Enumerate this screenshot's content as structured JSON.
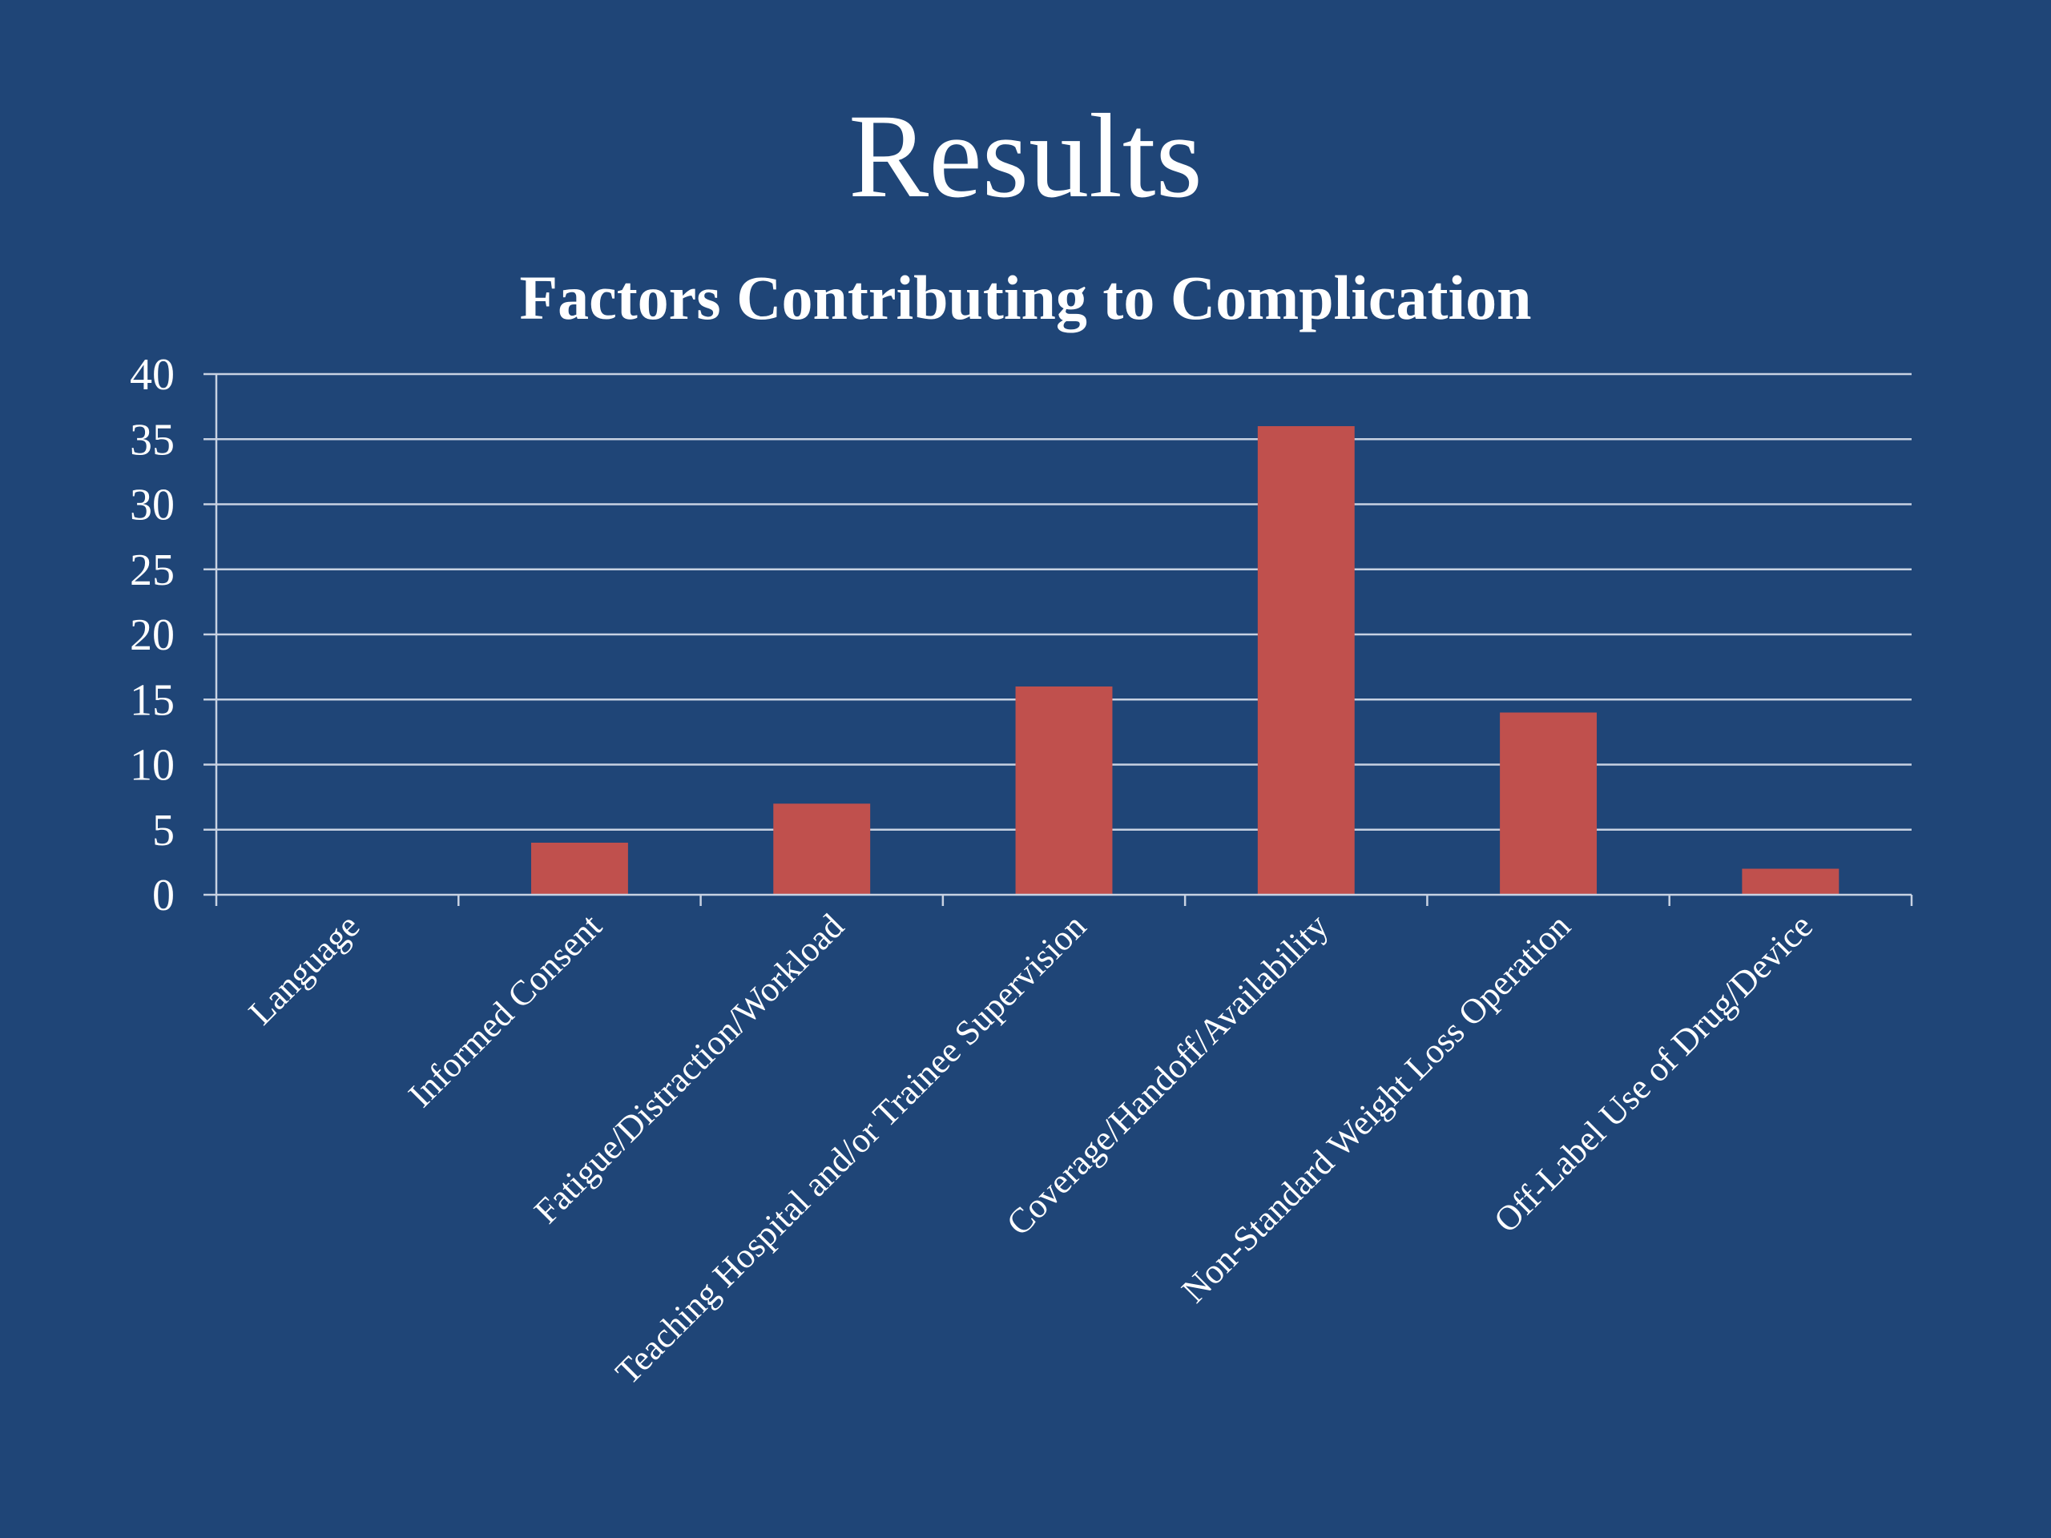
{
  "slide": {
    "title": "Results",
    "background": "#1f4577"
  },
  "chart_data": {
    "type": "bar",
    "title": "Factors Contributing to Complication",
    "categories": [
      "Language",
      "Informed Consent",
      "Fatigue/Distraction/Workload",
      "Teaching Hospital and/or Trainee Supervision",
      "Coverage/Handoff/Availability",
      "Non-Standard Weight Loss Operation",
      "Off-Label Use of Drug/Device"
    ],
    "values": [
      0,
      4,
      7,
      16,
      36,
      14,
      2
    ],
    "ylim": [
      0,
      40
    ],
    "yticks": [
      0,
      5,
      10,
      15,
      20,
      25,
      30,
      35,
      40
    ],
    "xlabel": "",
    "ylabel": "",
    "grid": true,
    "bar_color": "#c0504d",
    "grid_color": "#c8d2e2"
  }
}
